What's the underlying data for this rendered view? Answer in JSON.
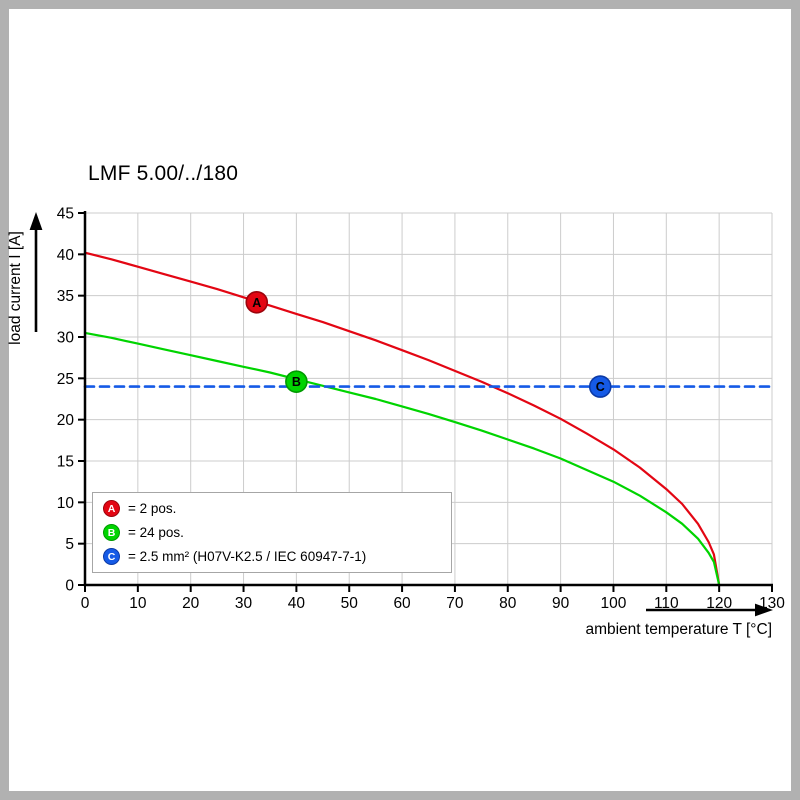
{
  "frame": {
    "border_color": "#b1b1b1",
    "background": "#ffffff"
  },
  "chart_data": {
    "type": "line",
    "title": "LMF 5.00/../180",
    "xlabel": "ambient temperature T [°C]",
    "ylabel": "load current I [A]",
    "xlim": [
      0,
      130
    ],
    "ylim": [
      0,
      45
    ],
    "x_ticks": [
      0,
      10,
      20,
      30,
      40,
      50,
      60,
      70,
      80,
      90,
      100,
      110,
      120,
      130
    ],
    "y_ticks": [
      0,
      5,
      10,
      15,
      20,
      25,
      30,
      35,
      40,
      45
    ],
    "grid": true,
    "grid_color": "#cccccc",
    "legend_position": "bottom-left",
    "series": [
      {
        "name": "A",
        "legend_text": "= 2 pos.",
        "color": "#e30613",
        "edge_color": "#9c040c",
        "style": "solid",
        "points": [
          [
            0,
            40.2
          ],
          [
            5,
            39.4
          ],
          [
            10,
            38.5
          ],
          [
            15,
            37.6
          ],
          [
            20,
            36.7
          ],
          [
            25,
            35.8
          ],
          [
            30,
            34.8
          ],
          [
            35,
            33.8
          ],
          [
            40,
            32.8
          ],
          [
            45,
            31.8
          ],
          [
            50,
            30.7
          ],
          [
            55,
            29.6
          ],
          [
            60,
            28.4
          ],
          [
            65,
            27.2
          ],
          [
            70,
            25.9
          ],
          [
            75,
            24.6
          ],
          [
            80,
            23.2
          ],
          [
            85,
            21.7
          ],
          [
            90,
            20.1
          ],
          [
            95,
            18.3
          ],
          [
            100,
            16.4
          ],
          [
            105,
            14.2
          ],
          [
            110,
            11.6
          ],
          [
            113,
            9.8
          ],
          [
            116,
            7.4
          ],
          [
            118,
            5.2
          ],
          [
            119,
            3.7
          ],
          [
            120,
            0
          ]
        ]
      },
      {
        "name": "B",
        "legend_text": "= 24 pos.",
        "color": "#00d400",
        "edge_color": "#009a00",
        "style": "solid",
        "points": [
          [
            0,
            30.5
          ],
          [
            5,
            29.9
          ],
          [
            10,
            29.2
          ],
          [
            15,
            28.5
          ],
          [
            20,
            27.8
          ],
          [
            25,
            27.1
          ],
          [
            30,
            26.4
          ],
          [
            35,
            25.7
          ],
          [
            40,
            24.9
          ],
          [
            45,
            24.1
          ],
          [
            50,
            23.3
          ],
          [
            55,
            22.5
          ],
          [
            60,
            21.6
          ],
          [
            65,
            20.7
          ],
          [
            70,
            19.7
          ],
          [
            75,
            18.7
          ],
          [
            80,
            17.6
          ],
          [
            85,
            16.5
          ],
          [
            90,
            15.3
          ],
          [
            95,
            13.9
          ],
          [
            100,
            12.5
          ],
          [
            105,
            10.8
          ],
          [
            110,
            8.8
          ],
          [
            113,
            7.4
          ],
          [
            116,
            5.6
          ],
          [
            118,
            3.9
          ],
          [
            119,
            2.8
          ],
          [
            120,
            0
          ]
        ]
      },
      {
        "name": "C",
        "legend_text": "= 2.5 mm² (H07V-K2.5 / IEC 60947-7-1)",
        "color": "#155ae6",
        "edge_color": "#0c3aa6",
        "style": "dashed",
        "points": [
          [
            0,
            24
          ],
          [
            130,
            24
          ]
        ]
      }
    ],
    "markers": [
      {
        "series": "A",
        "x": 32.5,
        "y": 34.2
      },
      {
        "series": "B",
        "x": 40,
        "y": 24.6
      },
      {
        "series": "C",
        "x": 97.5,
        "y": 24
      }
    ]
  }
}
